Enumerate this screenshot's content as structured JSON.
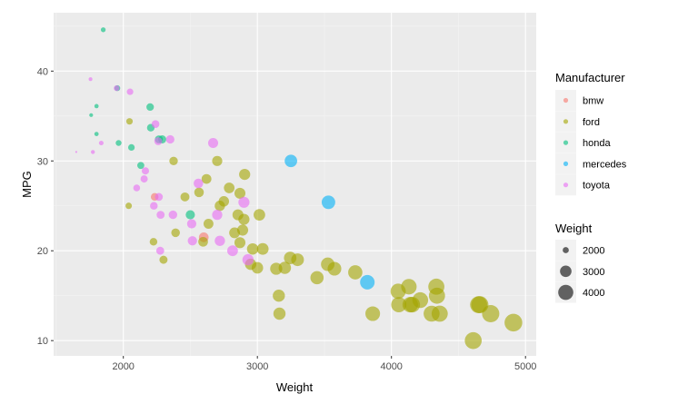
{
  "chart_data": {
    "type": "scatter",
    "title": "",
    "xlabel": "Weight",
    "ylabel": "MPG",
    "xlim": [
      1480,
      5080
    ],
    "ylim": [
      8.3,
      46.5
    ],
    "x_ticks": [
      2000,
      3000,
      4000,
      5000
    ],
    "x_tick_labels": [
      "2000",
      "3000",
      "4000",
      "5000"
    ],
    "y_ticks": [
      10,
      20,
      30,
      40
    ],
    "y_tick_labels": [
      "10",
      "20",
      "30",
      "40"
    ],
    "grid": true,
    "panel_background": "#ebebeb",
    "point_alpha": 0.6,
    "color_legend": {
      "title": "Manufacturer",
      "placement": "right",
      "entries": [
        {
          "name": "bmw",
          "color": "#F8766D"
        },
        {
          "name": "ford",
          "color": "#A3A500"
        },
        {
          "name": "honda",
          "color": "#00BF7D"
        },
        {
          "name": "mercedes",
          "color": "#00B0F6"
        },
        {
          "name": "toyota",
          "color": "#E76BF3"
        }
      ]
    },
    "size_legend": {
      "title": "Weight",
      "placement": "right",
      "entries": [
        {
          "label": "2000",
          "value": 2000
        },
        {
          "label": "3000",
          "value": 3000
        },
        {
          "label": "4000",
          "value": 4000
        }
      ]
    },
    "series": [
      {
        "name": "bmw",
        "points": [
          [
            2234,
            26
          ],
          [
            2600,
            21.5
          ]
        ]
      },
      {
        "name": "ford",
        "points": [
          [
            2046,
            34.4
          ],
          [
            2040,
            25
          ],
          [
            2225,
            21
          ],
          [
            2300,
            19
          ],
          [
            2390,
            22
          ],
          [
            2375,
            30
          ],
          [
            2460,
            26
          ],
          [
            2565,
            26.5
          ],
          [
            2595,
            21
          ],
          [
            2620,
            28
          ],
          [
            2635,
            23
          ],
          [
            2700,
            30
          ],
          [
            2720,
            25
          ],
          [
            2750,
            25.5
          ],
          [
            2790,
            27
          ],
          [
            2830,
            22
          ],
          [
            2855,
            24
          ],
          [
            2870,
            26.4
          ],
          [
            2870,
            20.9
          ],
          [
            2890,
            22.3
          ],
          [
            2900,
            23.5
          ],
          [
            2905,
            28.5
          ],
          [
            2950,
            18.5
          ],
          [
            2965,
            20.2
          ],
          [
            3000,
            18.1
          ],
          [
            3015,
            24
          ],
          [
            3040,
            20.2
          ],
          [
            3140,
            18
          ],
          [
            3160,
            15
          ],
          [
            3165,
            13
          ],
          [
            3205,
            18.1
          ],
          [
            3245,
            19.2
          ],
          [
            3300,
            19
          ],
          [
            3445,
            17
          ],
          [
            3525,
            18.5
          ],
          [
            3575,
            18
          ],
          [
            3730,
            17.6
          ],
          [
            3860,
            13
          ],
          [
            4050,
            15.5
          ],
          [
            4055,
            14
          ],
          [
            4130,
            16
          ],
          [
            4140,
            14
          ],
          [
            4155,
            14
          ],
          [
            4215,
            14.5
          ],
          [
            4300,
            13
          ],
          [
            4335,
            16
          ],
          [
            4340,
            15
          ],
          [
            4360,
            13
          ],
          [
            4650,
            14
          ],
          [
            4660,
            14
          ],
          [
            4740,
            13
          ],
          [
            4910,
            12
          ],
          [
            4610,
            10
          ]
        ]
      },
      {
        "name": "honda",
        "points": [
          [
            1850,
            44.6
          ],
          [
            1760,
            35.1
          ],
          [
            1800,
            36.1
          ],
          [
            1800,
            33
          ],
          [
            1955,
            38.1
          ],
          [
            1965,
            32
          ],
          [
            2060,
            31.5
          ],
          [
            2130,
            29.5
          ],
          [
            2200,
            36
          ],
          [
            2205,
            33.7
          ],
          [
            2265,
            32.4
          ],
          [
            2290,
            32.4
          ],
          [
            2500,
            24
          ]
        ]
      },
      {
        "name": "mercedes",
        "points": [
          [
            3250,
            30
          ],
          [
            3530,
            25.4
          ],
          [
            3820,
            16.5
          ]
        ]
      },
      {
        "name": "toyota",
        "points": [
          [
            1649,
            31
          ],
          [
            1755,
            39.1
          ],
          [
            1773,
            31
          ],
          [
            1835,
            32
          ],
          [
            1950,
            38.1
          ],
          [
            2050,
            37.7
          ],
          [
            2100,
            27
          ],
          [
            2155,
            28
          ],
          [
            2165,
            28.9
          ],
          [
            2228,
            25
          ],
          [
            2240,
            34.1
          ],
          [
            2260,
            32.2
          ],
          [
            2265,
            26
          ],
          [
            2275,
            20
          ],
          [
            2278,
            24
          ],
          [
            2350,
            32.4
          ],
          [
            2370,
            24
          ],
          [
            2510,
            23
          ],
          [
            2515,
            21.1
          ],
          [
            2560,
            27.5
          ],
          [
            2670,
            32
          ],
          [
            2700,
            24
          ],
          [
            2720,
            21.1
          ],
          [
            2815,
            20
          ],
          [
            2900,
            25.4
          ],
          [
            2930,
            19
          ]
        ]
      }
    ]
  }
}
